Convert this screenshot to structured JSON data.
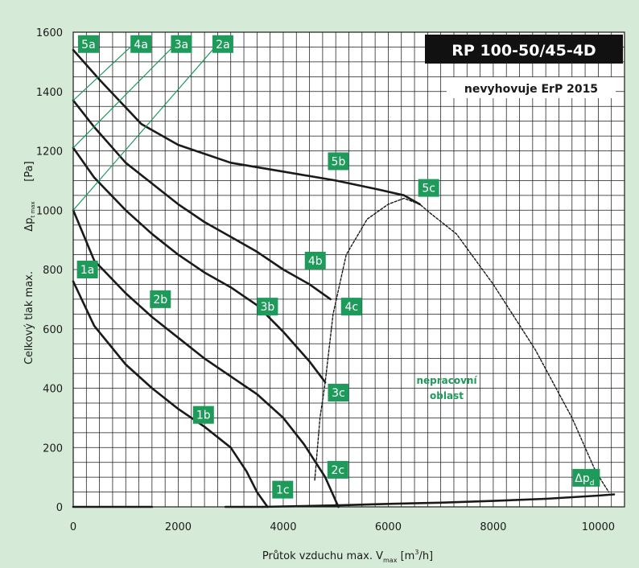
{
  "chart_data": {
    "type": "line",
    "title": "RP 100-50/45-4D",
    "subtitle": "nevyhovuje ErP 2015",
    "xlabel_prefix": "Průtok vzduchu max. V",
    "xlabel_sub": "max",
    "xlabel_unit_pre": "[m",
    "xlabel_unit_sup": "3",
    "xlabel_unit_post": "/h]",
    "ylabel": "Celkový tlak max.",
    "ylabel_sym": "Δp",
    "ylabel_sub": "t max",
    "ylabel_unit": "[Pa]",
    "xlim": [
      0,
      10500
    ],
    "ylim": [
      0,
      1600
    ],
    "xticks": [
      0,
      2000,
      4000,
      6000,
      8000,
      10000
    ],
    "yticks": [
      0,
      200,
      400,
      600,
      800,
      1000,
      1200,
      1400,
      1600
    ],
    "grid": true,
    "region_label": [
      "nepracovní",
      "oblast"
    ],
    "colors": {
      "background": "#d6ead8",
      "plot": "#ffffff",
      "accent": "#1e9a5a",
      "curve": "#1a1a1a",
      "title_bg": "#111111"
    },
    "series": [
      {
        "name": "1b",
        "style": "solid",
        "points": [
          [
            0,
            760
          ],
          [
            400,
            610
          ],
          [
            1000,
            480
          ],
          [
            1500,
            400
          ],
          [
            2000,
            330
          ],
          [
            2500,
            270
          ],
          [
            3000,
            200
          ],
          [
            3300,
            120
          ],
          [
            3500,
            50
          ],
          [
            3700,
            0
          ]
        ]
      },
      {
        "name": "2b",
        "style": "solid",
        "points": [
          [
            0,
            1000
          ],
          [
            400,
            830
          ],
          [
            1000,
            720
          ],
          [
            1500,
            640
          ],
          [
            2000,
            570
          ],
          [
            2500,
            500
          ],
          [
            3000,
            440
          ],
          [
            3500,
            380
          ],
          [
            4000,
            300
          ],
          [
            4400,
            210
          ],
          [
            4800,
            100
          ],
          [
            5050,
            0
          ]
        ]
      },
      {
        "name": "3b",
        "style": "solid",
        "points": [
          [
            0,
            1210
          ],
          [
            400,
            1110
          ],
          [
            1000,
            1000
          ],
          [
            1500,
            920
          ],
          [
            2000,
            850
          ],
          [
            2500,
            790
          ],
          [
            3000,
            740
          ],
          [
            3500,
            680
          ],
          [
            4000,
            590
          ],
          [
            4500,
            490
          ],
          [
            4800,
            420
          ]
        ]
      },
      {
        "name": "4b",
        "style": "solid",
        "points": [
          [
            0,
            1370
          ],
          [
            400,
            1280
          ],
          [
            1000,
            1160
          ],
          [
            1500,
            1090
          ],
          [
            2000,
            1020
          ],
          [
            2500,
            960
          ],
          [
            3000,
            910
          ],
          [
            3500,
            860
          ],
          [
            4000,
            800
          ],
          [
            4500,
            750
          ],
          [
            4900,
            700
          ]
        ]
      },
      {
        "name": "5b",
        "style": "solid",
        "points": [
          [
            0,
            1540
          ],
          [
            500,
            1440
          ],
          [
            1300,
            1290
          ],
          [
            2000,
            1220
          ],
          [
            3000,
            1160
          ],
          [
            4000,
            1130
          ],
          [
            5000,
            1100
          ],
          [
            5800,
            1070
          ],
          [
            6300,
            1050
          ],
          [
            6600,
            1020
          ]
        ]
      },
      {
        "name": "1a",
        "style": "solid",
        "points": [
          [
            0,
            0
          ],
          [
            1500,
            0
          ]
        ]
      },
      {
        "name": "1c",
        "style": "solid",
        "points": [
          [
            2900,
            0
          ],
          [
            3600,
            0
          ]
        ]
      },
      {
        "name": "Δpd",
        "style": "solid",
        "points": [
          [
            3600,
            0
          ],
          [
            5000,
            5
          ],
          [
            6000,
            10
          ],
          [
            7000,
            14
          ],
          [
            8000,
            20
          ],
          [
            9000,
            27
          ],
          [
            10000,
            38
          ],
          [
            10300,
            42
          ]
        ]
      },
      {
        "name": "limit",
        "style": "dashed",
        "points": [
          [
            4600,
            90
          ],
          [
            4700,
            300
          ],
          [
            4800,
            420
          ],
          [
            4950,
            650
          ],
          [
            5200,
            850
          ],
          [
            5600,
            970
          ],
          [
            6000,
            1020
          ],
          [
            6300,
            1040
          ],
          [
            6600,
            1020
          ],
          [
            6800,
            990
          ],
          [
            7300,
            920
          ],
          [
            8000,
            750
          ],
          [
            8800,
            530
          ],
          [
            9500,
            300
          ],
          [
            9950,
            120
          ],
          [
            10200,
            50
          ]
        ]
      },
      {
        "name": "2a",
        "style": "green",
        "points": [
          [
            0,
            1000
          ],
          [
            2750,
            1560
          ]
        ]
      },
      {
        "name": "3a",
        "style": "green",
        "points": [
          [
            0,
            1210
          ],
          [
            1950,
            1560
          ]
        ]
      },
      {
        "name": "4a",
        "style": "green",
        "points": [
          [
            0,
            1370
          ],
          [
            1150,
            1560
          ]
        ]
      }
    ],
    "labels": [
      {
        "text": "5a",
        "x": 290,
        "y": 1560
      },
      {
        "text": "4a",
        "x": 1290,
        "y": 1560
      },
      {
        "text": "3a",
        "x": 2060,
        "y": 1560
      },
      {
        "text": "2a",
        "x": 2850,
        "y": 1560
      },
      {
        "text": "1a",
        "x": 270,
        "y": 800
      },
      {
        "text": "2b",
        "x": 1660,
        "y": 700
      },
      {
        "text": "3b",
        "x": 3700,
        "y": 675
      },
      {
        "text": "4b",
        "x": 4610,
        "y": 830
      },
      {
        "text": "5b",
        "x": 5050,
        "y": 1165
      },
      {
        "text": "5c",
        "x": 6770,
        "y": 1075
      },
      {
        "text": "4c",
        "x": 5300,
        "y": 675
      },
      {
        "text": "3c",
        "x": 5050,
        "y": 385
      },
      {
        "text": "2c",
        "x": 5040,
        "y": 125
      },
      {
        "text": "1c",
        "x": 3990,
        "y": 58
      },
      {
        "text": "1b",
        "x": 2480,
        "y": 310
      }
    ],
    "dp_label": {
      "main": "Δp",
      "sub": "d",
      "x": 9770,
      "y": 98
    }
  }
}
